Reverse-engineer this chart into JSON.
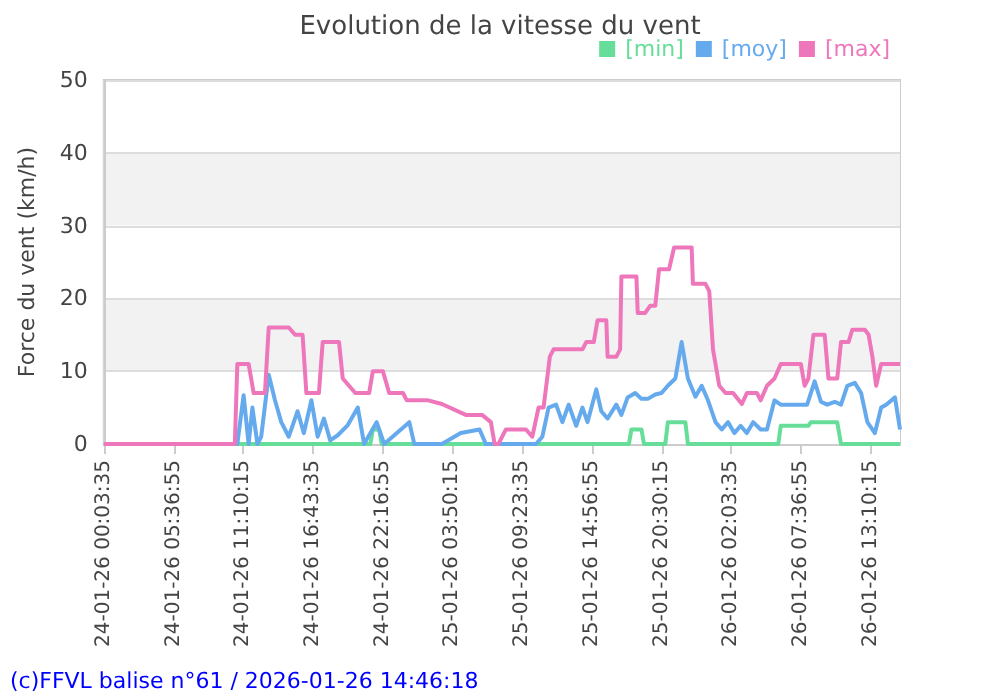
{
  "chart_data": {
    "type": "line",
    "title": "Evolution de la vitesse du vent",
    "ylabel": "Force du vent (km/h)",
    "annotations": [
      "(c)FFVL balise n°61 / 2026-01-26 14:46:18"
    ],
    "xlim": [
      "2026-01-24T00:03:35",
      "2026-01-26T15:30"
    ],
    "xticks": [
      {
        "value": "2026-01-24T00:03:35",
        "label": "24-01-26 00:03:35"
      },
      {
        "value": "2026-01-24T05:36:55",
        "label": "24-01-26 05:36:55"
      },
      {
        "value": "2026-01-24T11:10:15",
        "label": "24-01-26 11:10:15"
      },
      {
        "value": "2026-01-24T16:43:35",
        "label": "24-01-26 16:43:35"
      },
      {
        "value": "2026-01-24T22:16:55",
        "label": "24-01-26 22:16:55"
      },
      {
        "value": "2026-01-25T03:50:15",
        "label": "25-01-26 03:50:15"
      },
      {
        "value": "2026-01-25T09:23:35",
        "label": "25-01-26 09:23:35"
      },
      {
        "value": "2026-01-25T14:56:55",
        "label": "25-01-26 14:56:55"
      },
      {
        "value": "2026-01-25T20:30:15",
        "label": "25-01-26 20:30:15"
      },
      {
        "value": "2026-01-26T02:03:35",
        "label": "26-01-26 02:03:35"
      },
      {
        "value": "2026-01-26T07:36:55",
        "label": "26-01-26 07:36:55"
      },
      {
        "value": "2026-01-26T13:10:15",
        "label": "26-01-26 13:10:15"
      }
    ],
    "ylim": [
      0,
      50
    ],
    "yticks": [
      0,
      10,
      20,
      30,
      40,
      50
    ],
    "grid": "y",
    "legend": "top right",
    "marker": "none",
    "line_style": "solid",
    "series": [
      {
        "name": "[min]",
        "color": "#66dd99",
        "x": [
          "2026-01-24T00:04",
          "2026-01-24T21:18",
          "2026-01-24T21:30",
          "2026-01-24T22:00",
          "2026-01-24T22:12",
          "2026-01-25T17:54",
          "2026-01-25T18:06",
          "2026-01-25T18:54",
          "2026-01-25T19:06",
          "2026-01-25T20:48",
          "2026-01-25T21:00",
          "2026-01-25T22:24",
          "2026-01-25T22:36",
          "2026-01-26T05:48",
          "2026-01-26T06:00",
          "2026-01-26T08:12",
          "2026-01-26T08:24",
          "2026-01-26T10:30",
          "2026-01-26T10:48",
          "2026-01-26T15:30"
        ],
        "values": [
          0,
          0,
          2,
          2,
          0,
          0,
          2,
          2,
          0,
          0,
          3,
          3,
          0,
          0,
          2.5,
          2.5,
          3,
          3,
          0,
          0
        ]
      },
      {
        "name": "[moy]",
        "color": "#66aaee",
        "x": [
          "2026-01-24T00:04",
          "2026-01-24T10:30",
          "2026-01-24T10:42",
          "2026-01-24T11:12",
          "2026-01-24T11:36",
          "2026-01-24T11:54",
          "2026-01-24T12:18",
          "2026-01-24T12:36",
          "2026-01-24T13:12",
          "2026-01-24T13:42",
          "2026-01-24T14:12",
          "2026-01-24T14:48",
          "2026-01-24T15:30",
          "2026-01-24T16:00",
          "2026-01-24T16:36",
          "2026-01-24T17:06",
          "2026-01-24T17:36",
          "2026-01-24T18:06",
          "2026-01-24T18:42",
          "2026-01-24T19:30",
          "2026-01-24T20:18",
          "2026-01-24T20:48",
          "2026-01-24T21:48",
          "2026-01-24T22:24",
          "2026-01-25T00:24",
          "2026-01-25T00:48",
          "2026-01-25T03:00",
          "2026-01-25T04:30",
          "2026-01-25T06:00",
          "2026-01-25T06:30",
          "2026-01-25T10:30",
          "2026-01-25T11:00",
          "2026-01-25T11:30",
          "2026-01-25T12:06",
          "2026-01-25T12:36",
          "2026-01-25T13:06",
          "2026-01-25T13:42",
          "2026-01-25T14:12",
          "2026-01-25T14:36",
          "2026-01-25T15:18",
          "2026-01-25T15:42",
          "2026-01-25T16:12",
          "2026-01-25T16:54",
          "2026-01-25T17:18",
          "2026-01-25T17:48",
          "2026-01-25T18:24",
          "2026-01-25T18:54",
          "2026-01-25T19:24",
          "2026-01-25T20:00",
          "2026-01-25T20:30",
          "2026-01-25T21:00",
          "2026-01-25T21:36",
          "2026-01-25T22:06",
          "2026-01-25T22:36",
          "2026-01-25T23:12",
          "2026-01-25T23:42",
          "2026-01-26T00:12",
          "2026-01-26T00:48",
          "2026-01-26T01:18",
          "2026-01-26T01:48",
          "2026-01-26T02:18",
          "2026-01-26T02:48",
          "2026-01-26T03:18",
          "2026-01-26T03:48",
          "2026-01-26T04:24",
          "2026-01-26T04:54",
          "2026-01-26T05:30",
          "2026-01-26T06:00",
          "2026-01-26T06:30",
          "2026-01-26T08:06",
          "2026-01-26T08:42",
          "2026-01-26T09:12",
          "2026-01-26T09:42",
          "2026-01-26T10:18",
          "2026-01-26T10:48",
          "2026-01-26T11:18",
          "2026-01-26T11:54",
          "2026-01-26T12:24",
          "2026-01-26T12:54",
          "2026-01-26T13:30",
          "2026-01-26T14:00",
          "2026-01-26T14:24",
          "2026-01-26T15:06",
          "2026-01-26T15:30"
        ],
        "values": [
          0,
          0,
          0,
          6.7,
          0,
          5,
          0,
          1,
          9.5,
          6,
          3,
          1,
          4.5,
          1.5,
          6,
          1,
          3.5,
          0.5,
          1.2,
          2.6,
          5,
          0,
          3,
          0,
          3,
          0,
          0,
          1.5,
          2,
          0,
          0,
          1,
          5,
          5.4,
          3,
          5.4,
          2.5,
          5,
          3,
          7.5,
          4.5,
          3.5,
          5.4,
          4,
          6.4,
          7,
          6.2,
          6.2,
          6.8,
          7,
          8,
          9,
          14,
          9,
          6.5,
          8,
          6,
          3,
          2,
          3,
          1.5,
          2.5,
          1.5,
          3,
          2,
          2,
          6,
          5.4,
          5.4,
          5.4,
          8.6,
          5.8,
          5.4,
          5.8,
          5.4,
          8,
          8.4,
          7,
          3,
          1.5,
          5,
          5.4,
          6.4,
          2
        ]
      },
      {
        "name": "[max]",
        "color": "#ee77bb",
        "x": [
          "2026-01-24T00:04",
          "2026-01-24T10:30",
          "2026-01-24T10:42",
          "2026-01-24T11:36",
          "2026-01-24T12:00",
          "2026-01-24T12:54",
          "2026-01-24T13:12",
          "2026-01-24T14:48",
          "2026-01-24T15:18",
          "2026-01-24T15:54",
          "2026-01-24T16:12",
          "2026-01-24T17:12",
          "2026-01-24T17:30",
          "2026-01-24T18:48",
          "2026-01-24T19:06",
          "2026-01-24T19:36",
          "2026-01-24T20:06",
          "2026-01-24T21:12",
          "2026-01-24T21:30",
          "2026-01-24T22:18",
          "2026-01-24T22:48",
          "2026-01-24T23:54",
          "2026-01-25T00:12",
          "2026-01-25T01:54",
          "2026-01-25T03:00",
          "2026-01-25T04:54",
          "2026-01-25T06:12",
          "2026-01-25T06:54",
          "2026-01-25T07:12",
          "2026-01-25T07:30",
          "2026-01-25T08:06",
          "2026-01-25T09:42",
          "2026-01-25T10:12",
          "2026-01-25T10:42",
          "2026-01-25T11:06",
          "2026-01-25T11:36",
          "2026-01-25T11:54",
          "2026-01-25T14:12",
          "2026-01-25T14:30",
          "2026-01-25T15:06",
          "2026-01-25T15:24",
          "2026-01-25T16:06",
          "2026-01-25T16:12",
          "2026-01-25T16:54",
          "2026-01-25T17:12",
          "2026-01-25T17:18",
          "2026-01-25T18:30",
          "2026-01-25T18:36",
          "2026-01-25T19:12",
          "2026-01-25T19:36",
          "2026-01-25T20:00",
          "2026-01-25T20:18",
          "2026-01-25T21:06",
          "2026-01-25T21:30",
          "2026-01-25T22:54",
          "2026-01-25T23:00",
          "2026-01-26T00:00",
          "2026-01-26T00:18",
          "2026-01-26T00:36",
          "2026-01-26T01:06",
          "2026-01-26T01:36",
          "2026-01-26T02:12",
          "2026-01-26T02:54",
          "2026-01-26T03:18",
          "2026-01-26T04:06",
          "2026-01-26T04:24",
          "2026-01-26T04:54",
          "2026-01-26T05:30",
          "2026-01-26T06:00",
          "2026-01-26T07:36",
          "2026-01-26T07:54",
          "2026-01-26T08:12",
          "2026-01-26T08:36",
          "2026-01-26T09:30",
          "2026-01-26T09:48",
          "2026-01-26T10:30",
          "2026-01-26T10:48",
          "2026-01-26T11:24",
          "2026-01-26T11:42",
          "2026-01-26T12:42",
          "2026-01-26T13:00",
          "2026-01-26T13:18",
          "2026-01-26T13:36",
          "2026-01-26T14:00",
          "2026-01-26T15:30"
        ],
        "values": [
          0,
          0,
          11,
          11,
          7,
          7,
          16,
          16,
          15,
          15,
          7,
          7,
          14,
          14,
          9,
          8,
          7,
          7,
          10,
          10,
          7,
          7,
          6,
          6,
          5.5,
          4,
          4,
          3,
          0,
          0,
          2,
          2,
          1,
          5,
          5,
          12,
          13,
          13,
          14,
          14,
          17,
          17,
          12,
          12,
          13,
          23,
          23,
          18,
          18,
          19,
          19,
          24,
          24,
          27,
          27,
          22,
          22,
          21,
          13,
          8,
          7,
          7,
          5.5,
          7,
          7,
          6,
          8,
          9,
          11,
          11,
          8,
          9,
          15,
          15,
          9,
          9,
          14,
          14,
          15.7,
          15.7,
          15,
          12,
          8,
          11,
          11
        ]
      }
    ]
  }
}
